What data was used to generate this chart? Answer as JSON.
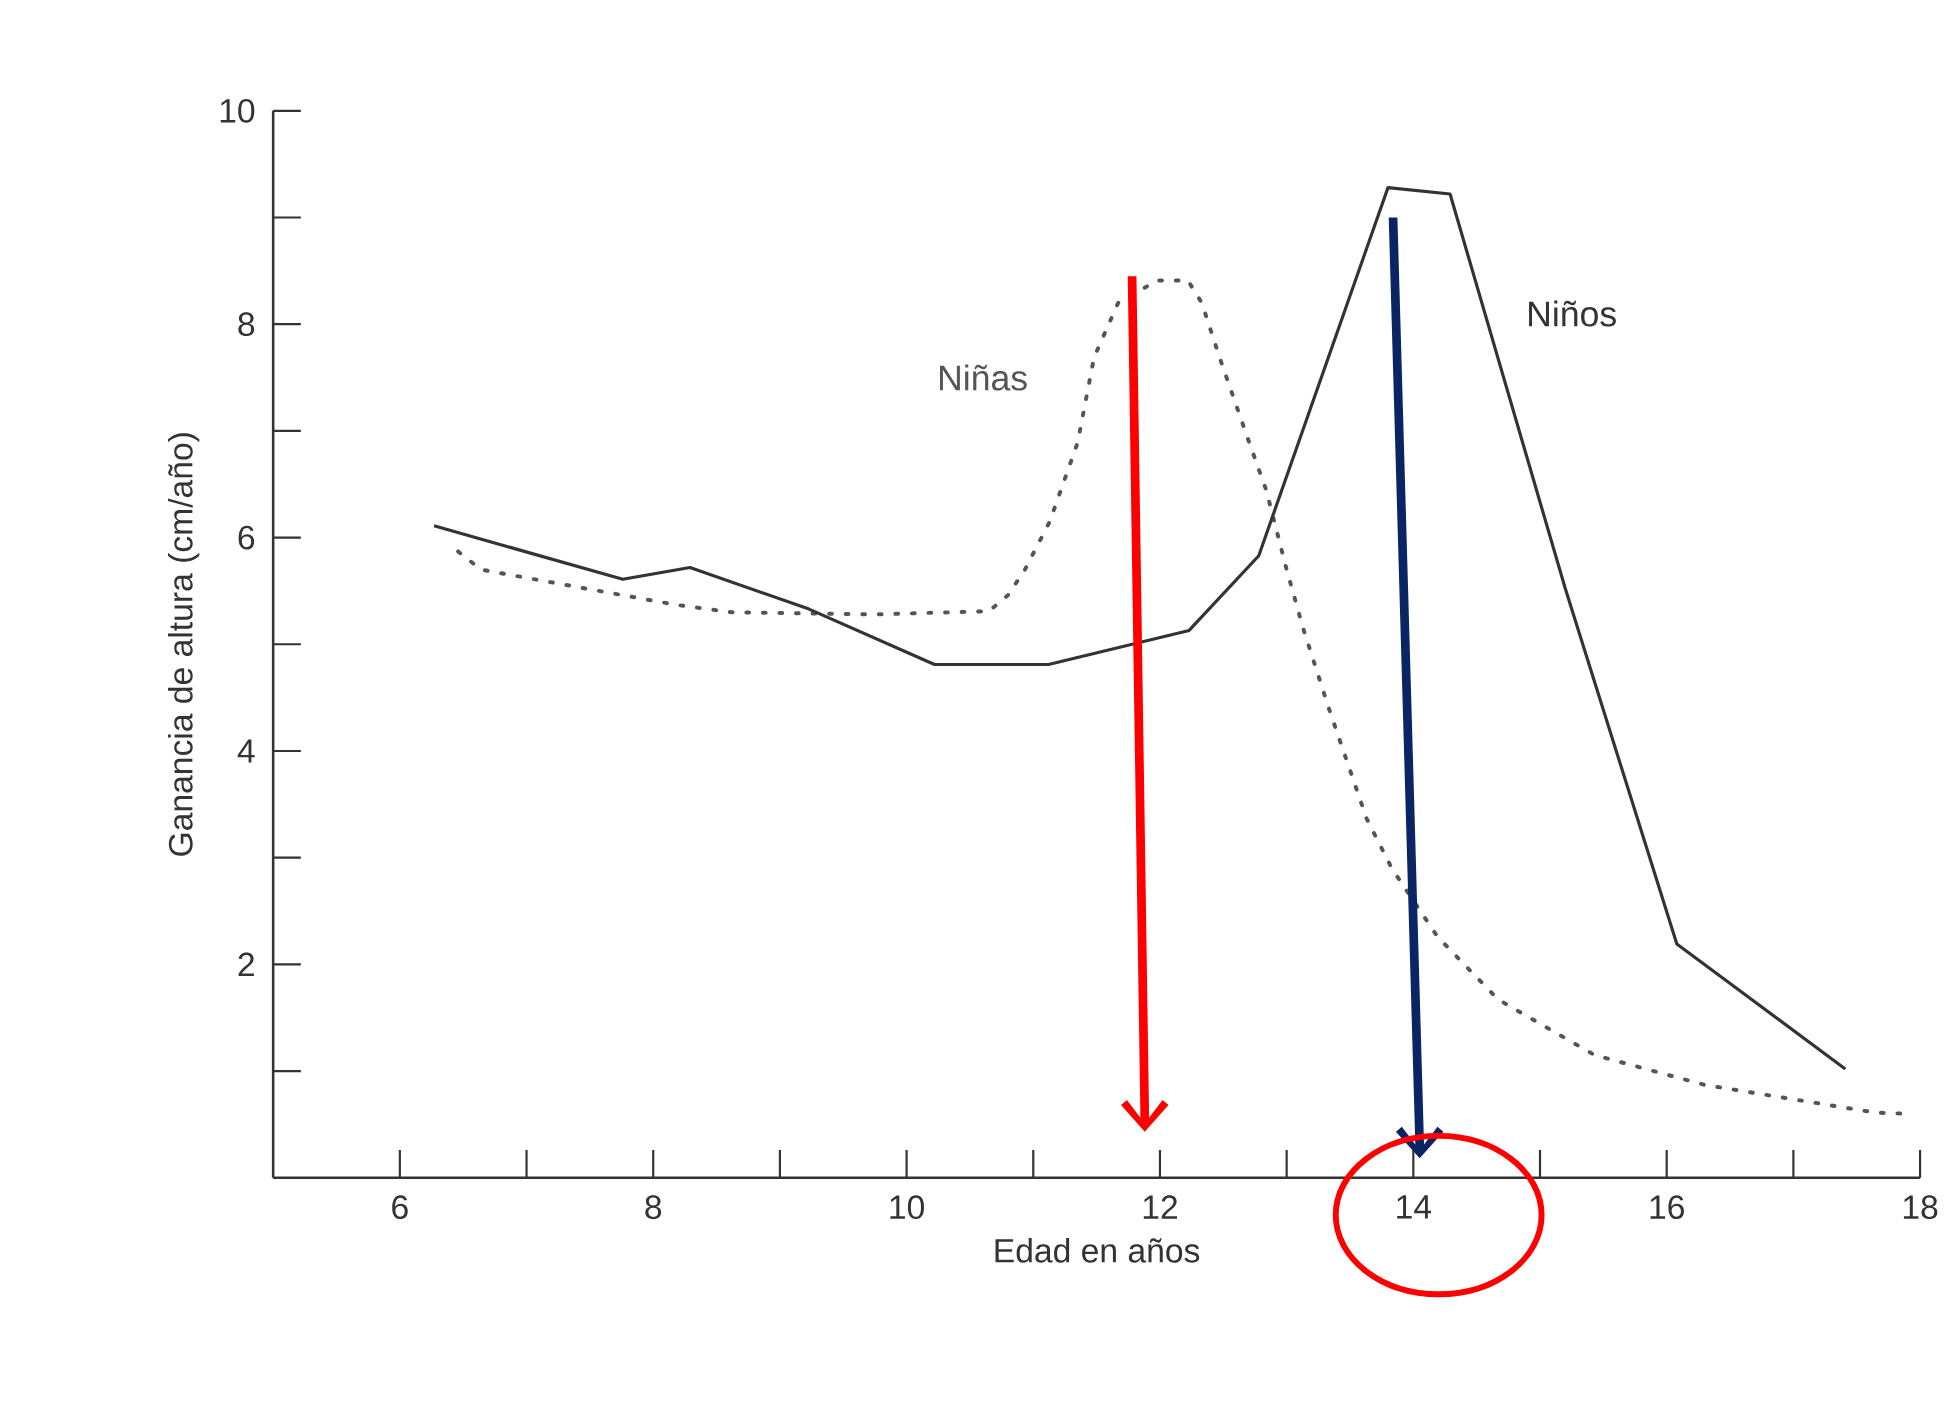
{
  "chart_data": {
    "type": "line",
    "xlabel": "Edad en años",
    "ylabel": "Ganancia de altura (cm/año)",
    "xlim": [
      5,
      18
    ],
    "ylim": [
      0,
      10
    ],
    "xticks": [
      6,
      {
        "value": 7,
        "label": null
      },
      8,
      {
        "value": 9,
        "label": null
      },
      10,
      {
        "value": 11,
        "label": null
      },
      12,
      {
        "value": 13,
        "label": null
      },
      14,
      {
        "value": 15,
        "label": null
      },
      16,
      {
        "value": 17,
        "label": null
      },
      18
    ],
    "yticks": [
      {
        "value": 1,
        "label": null
      },
      2,
      {
        "value": 3,
        "label": null
      },
      4,
      {
        "value": 5,
        "label": null
      },
      6,
      {
        "value": 7,
        "label": null
      },
      8,
      {
        "value": 9,
        "label": null
      },
      10
    ],
    "grid": false,
    "marker": "none",
    "series": [
      {
        "name": "Niñas",
        "color": "#555555",
        "line_style": "dotted",
        "x": [
          6.46,
          6.64,
          8.18,
          8.62,
          9.75,
          10.65,
          10.8,
          10.93,
          11.13,
          11.35,
          11.48,
          11.67,
          11.98,
          12.22,
          12.33,
          12.47,
          12.69,
          12.84,
          13.0,
          13.13,
          13.33,
          13.63,
          13.83,
          14.19,
          14.67,
          15.43,
          16.3,
          17.65,
          17.9
        ],
        "values": [
          5.87,
          5.7,
          5.37,
          5.3,
          5.28,
          5.31,
          5.46,
          5.69,
          6.15,
          6.89,
          7.69,
          8.2,
          8.41,
          8.41,
          8.2,
          7.69,
          6.94,
          6.44,
          5.7,
          5.15,
          4.41,
          3.37,
          2.9,
          2.26,
          1.67,
          1.15,
          0.87,
          0.61,
          0.6
        ]
      },
      {
        "name": "Niños",
        "color": "#333333",
        "line_style": "solid",
        "x": [
          6.27,
          7.76,
          8.29,
          9.23,
          10.22,
          11.12,
          12.23,
          12.78,
          13.8,
          14.29,
          15.2,
          16.08,
          17.41
        ],
        "values": [
          6.11,
          5.61,
          5.72,
          5.33,
          4.81,
          4.81,
          5.13,
          5.83,
          9.28,
          9.22,
          5.52,
          2.19,
          1.02
        ]
      }
    ]
  }
}
